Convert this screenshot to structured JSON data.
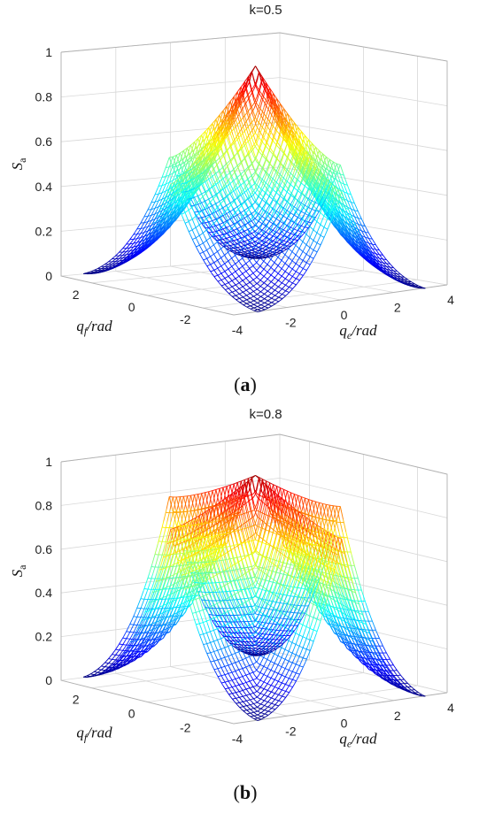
{
  "chart_data": [
    {
      "type": "surface",
      "panel": "a",
      "title": "k=0.5",
      "xlabel": "q_e/rad",
      "ylabel": "q_f/rad",
      "zlabel": "S_a",
      "xlim": [
        -4,
        4
      ],
      "ylim": [
        -3.1,
        3.1
      ],
      "zlim": [
        0,
        1
      ],
      "xticks": [
        "-4",
        "-2",
        "0",
        "2",
        "4"
      ],
      "yticks": [
        "2",
        "0",
        "-2"
      ],
      "zticks": [
        "0",
        "0.2",
        "0.4",
        "0.6",
        "0.8",
        "1"
      ],
      "k": 0.5,
      "peak": {
        "q_e": 0,
        "q_f": 0,
        "S_a": 0.97
      },
      "mid_edge_values": {
        "q_e=±3.14, q_f=0": 0.55,
        "q_e=0, q_f=±3.14": 0.55
      },
      "corner_value": 0.0,
      "colormap": "jet",
      "grid": true
    },
    {
      "type": "surface",
      "panel": "b",
      "title": "k=0.8",
      "xlabel": "q_e/rad",
      "ylabel": "q_f/rad",
      "zlabel": "S_a",
      "xlim": [
        -4,
        4
      ],
      "ylim": [
        -3.1,
        3.1
      ],
      "zlim": [
        0,
        1
      ],
      "xticks": [
        "-4",
        "-2",
        "0",
        "2",
        "4"
      ],
      "yticks": [
        "2",
        "0",
        "-2"
      ],
      "zticks": [
        "0",
        "0.2",
        "0.4",
        "0.6",
        "0.8",
        "1"
      ],
      "k": 0.8,
      "peak": {
        "q_e": 0,
        "q_f": 0,
        "S_a": 0.97
      },
      "mid_edge_values": {
        "q_e=±3.14, q_f=0": 0.79,
        "q_e=0, q_f=±3.14": 0.79
      },
      "corner_value": 0.0,
      "colormap": "jet",
      "grid": true
    }
  ],
  "panel_labels": [
    "a",
    "b"
  ]
}
